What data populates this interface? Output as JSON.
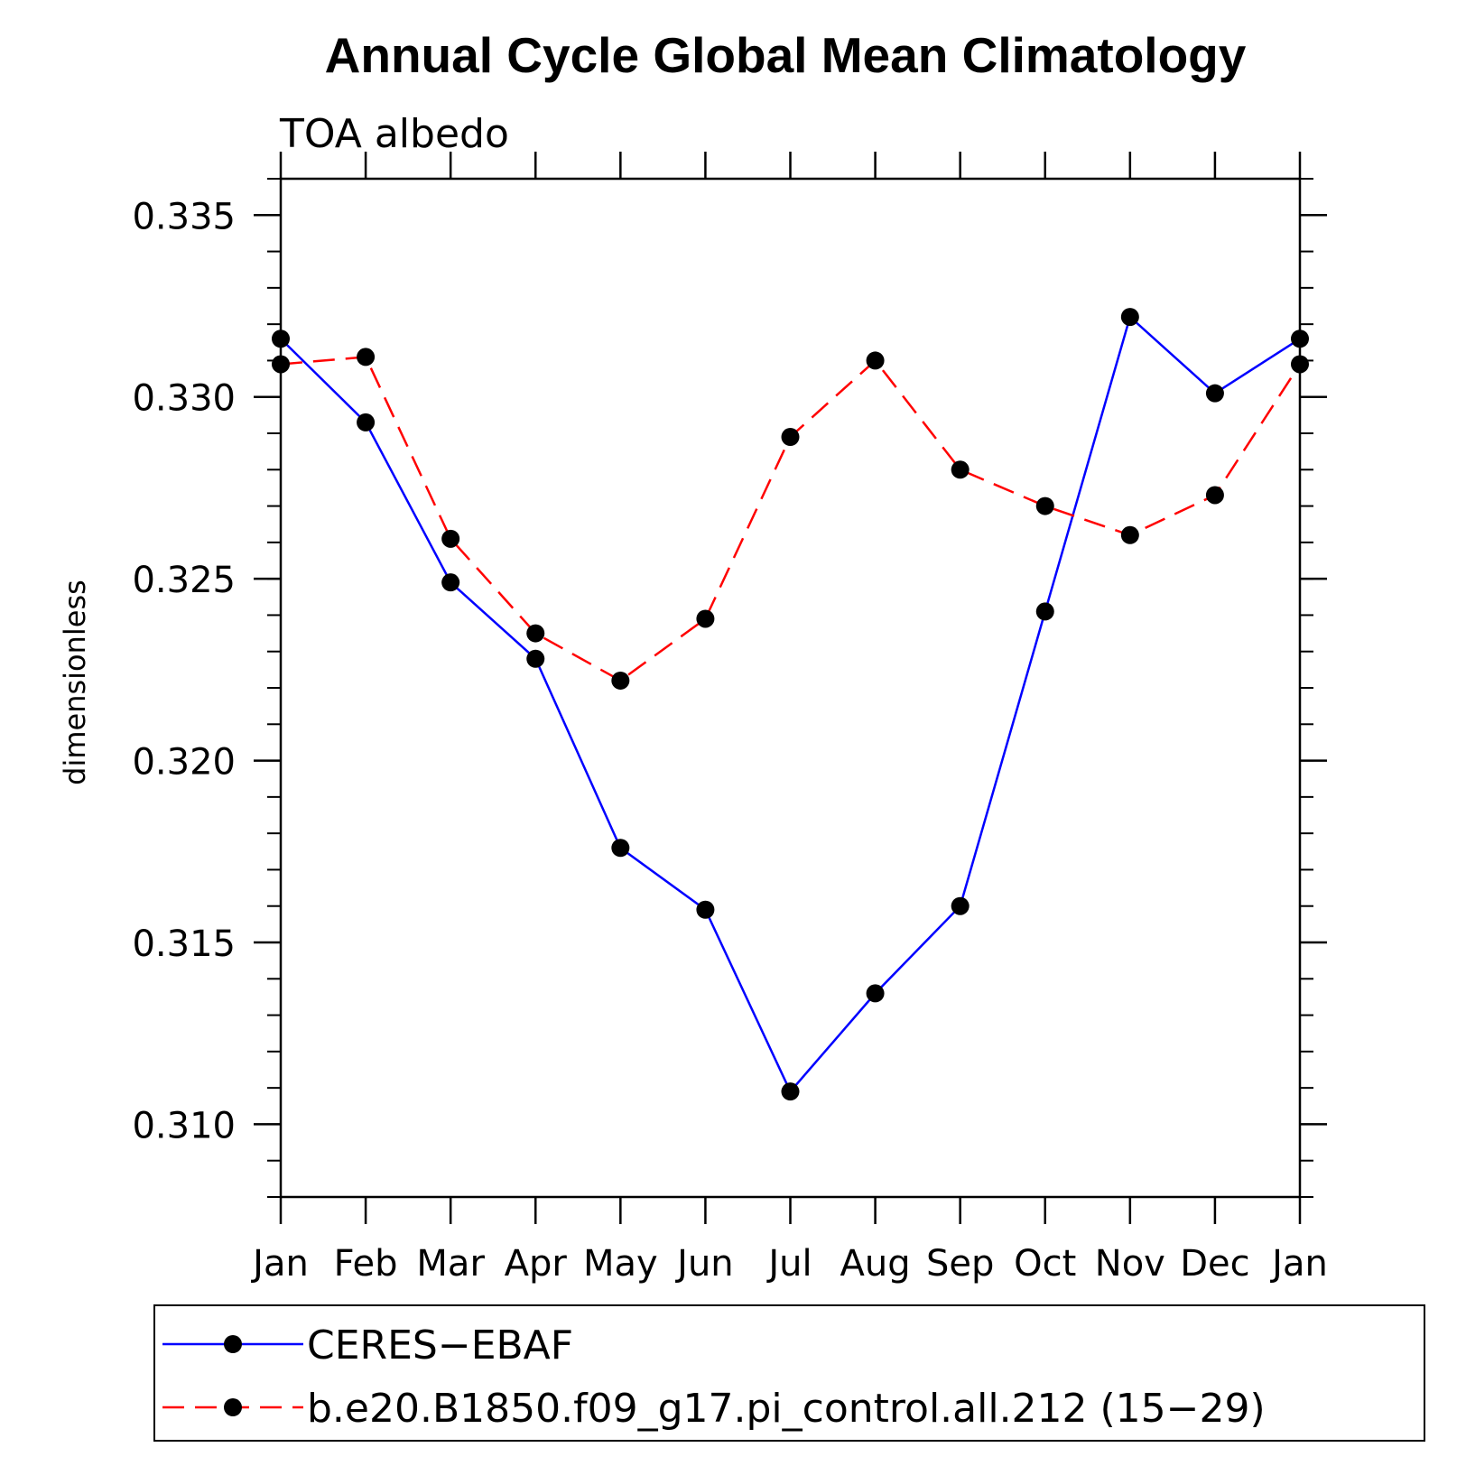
{
  "chart_data": {
    "type": "line",
    "title": "Annual Cycle Global Mean Climatology",
    "subtitle": "TOA albedo",
    "xlabel": "",
    "ylabel": "dimensionless",
    "categories": [
      "Jan",
      "Feb",
      "Mar",
      "Apr",
      "May",
      "Jun",
      "Jul",
      "Aug",
      "Sep",
      "Oct",
      "Nov",
      "Dec",
      "Jan"
    ],
    "ylim": [
      0.308,
      0.336
    ],
    "yticks": [
      "0.310",
      "0.315",
      "0.320",
      "0.325",
      "0.330",
      "0.335"
    ],
    "legend_position": "bottom",
    "series": [
      {
        "name": "CERES−EBAF",
        "color": "#0000ff",
        "dash": "solid",
        "marker": "filled-circle",
        "values": [
          0.3316,
          0.3293,
          0.3249,
          0.3228,
          0.3176,
          0.3159,
          0.3109,
          0.3136,
          0.316,
          0.3241,
          0.3322,
          0.3301,
          0.3316
        ]
      },
      {
        "name": "b.e20.B1850.f09_g17.pi_control.all.212 (15−29)",
        "color": "#ff0000",
        "dash": "dashed",
        "marker": "filled-circle",
        "values": [
          0.3309,
          0.3311,
          0.3261,
          0.3235,
          0.3222,
          0.3239,
          0.3289,
          0.331,
          0.328,
          0.327,
          0.3262,
          0.3273,
          0.3309
        ]
      }
    ]
  }
}
